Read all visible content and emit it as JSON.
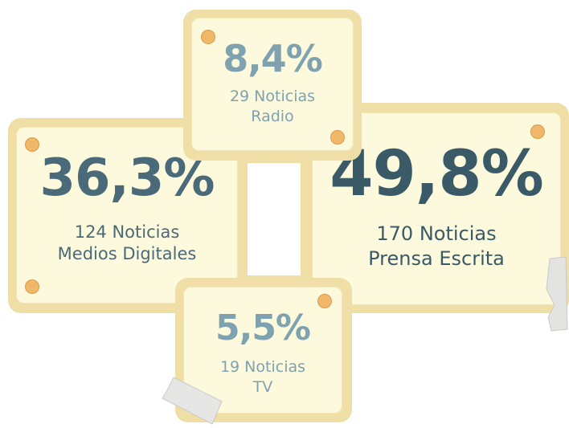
{
  "cards": [
    {
      "percent": "8,4%",
      "count": "29 Noticias",
      "medium": "Radio"
    },
    {
      "percent": "36,3%",
      "count": "124 Noticias",
      "medium": "Medios Digitales"
    },
    {
      "percent": "49,8%",
      "count": "170 Noticias",
      "medium": "Prensa Escrita"
    },
    {
      "percent": "5,5%",
      "count": "19 Noticias",
      "medium": "TV"
    }
  ]
}
